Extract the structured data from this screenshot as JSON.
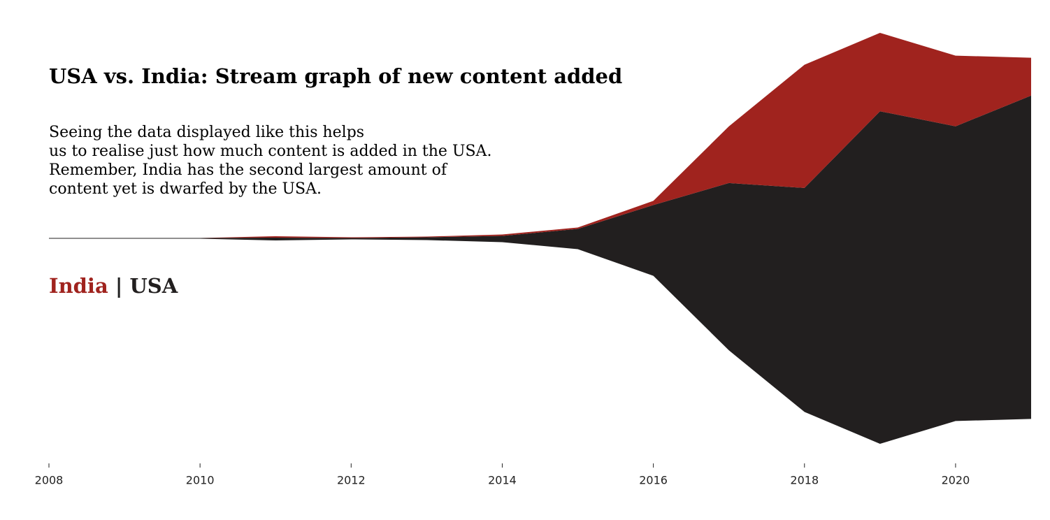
{
  "chart_data": {
    "type": "streamgraph",
    "title": "USA vs. India: Stream graph of new content added",
    "subtitle": [
      "Seeing the data displayed like this helps",
      "us to realise just how much content is added in the USA.",
      "Remember, India has the second largest amount of",
      "content yet is dwarfed by the USA."
    ],
    "legend_separator": "|",
    "x": [
      2008,
      2009,
      2010,
      2011,
      2012,
      2013,
      2014,
      2015,
      2016,
      2017,
      2018,
      2019,
      2020,
      2021
    ],
    "series": [
      {
        "name": "USA",
        "color": "#221f1f",
        "values": [
          2,
          2,
          2,
          8,
          4,
          8,
          18,
          58,
          202,
          478,
          640,
          950,
          842,
          924
        ]
      },
      {
        "name": "India",
        "color": "#a0231e",
        "values": [
          0,
          0,
          0,
          4,
          2,
          2,
          4,
          4,
          12,
          162,
          352,
          224,
          202,
          108
        ]
      }
    ],
    "xlim": [
      2008,
      2021
    ],
    "xticks": [
      2008,
      2010,
      2012,
      2014,
      2016,
      2018,
      2020
    ]
  }
}
